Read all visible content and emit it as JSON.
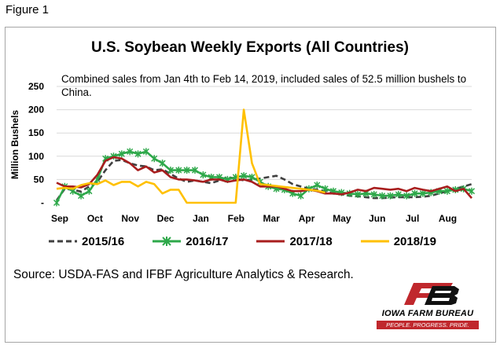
{
  "figure_label": "Figure 1",
  "source_text": "Source: USDA-FAS and IFBF Agriculture Analytics & Research.",
  "logo": {
    "name": "IOWA FARM BUREAU",
    "tagline": "PEOPLE. PROGRESS. PRIDE.",
    "color": "#c0282d"
  },
  "chart_data": {
    "type": "line",
    "title": "U.S. Soybean Weekly Exports (All Countries)",
    "annotation": "Combined sales from Jan 4th to Feb 14, 2019, included sales of 52.5 million bushels to China.",
    "ylabel": "Million Bushels",
    "xlabel": "",
    "ylim": [
      0,
      250
    ],
    "yticks": [
      0,
      50,
      100,
      150,
      200,
      250
    ],
    "ytick_labels": [
      "-",
      "50",
      "100",
      "150",
      "200",
      "250"
    ],
    "x_week_range": [
      1,
      52
    ],
    "months": [
      "Sep",
      "Oct",
      "Nov",
      "Dec",
      "Jan",
      "Feb",
      "Mar",
      "Apr",
      "May",
      "Jun",
      "Jul",
      "Aug"
    ],
    "grid": "horizontal",
    "legend_position": "bottom",
    "series": [
      {
        "name": "2015/16",
        "color": "#404040",
        "style": "dashed",
        "values": [
          5,
          30,
          28,
          24,
          35,
          45,
          70,
          90,
          92,
          85,
          80,
          78,
          70,
          72,
          62,
          52,
          45,
          48,
          45,
          42,
          48,
          55,
          52,
          48,
          50,
          52,
          55,
          58,
          50,
          40,
          35,
          30,
          28,
          25,
          20,
          18,
          15,
          14,
          12,
          10,
          10,
          11,
          12,
          12,
          12,
          13,
          15,
          20,
          25,
          30,
          35,
          40
        ]
      },
      {
        "name": "2016/17",
        "color": "#2ea84a",
        "style": "solid-x-markers",
        "values": [
          0,
          35,
          25,
          15,
          25,
          50,
          95,
          100,
          105,
          110,
          105,
          110,
          95,
          85,
          70,
          70,
          70,
          70,
          60,
          55,
          55,
          50,
          55,
          58,
          55,
          45,
          35,
          30,
          28,
          20,
          15,
          30,
          38,
          30,
          25,
          22,
          20,
          18,
          20,
          18,
          15,
          15,
          18,
          15,
          20,
          20,
          22,
          25,
          25,
          28,
          30,
          25
        ]
      },
      {
        "name": "2017/18",
        "color": "#a81e1e",
        "style": "solid",
        "values": [
          43,
          35,
          35,
          33,
          40,
          60,
          90,
          98,
          95,
          85,
          70,
          78,
          65,
          70,
          55,
          50,
          50,
          48,
          45,
          50,
          50,
          45,
          48,
          50,
          45,
          35,
          35,
          35,
          30,
          25,
          25,
          28,
          25,
          20,
          20,
          18,
          22,
          28,
          25,
          32,
          30,
          28,
          30,
          25,
          32,
          28,
          25,
          30,
          35,
          25,
          30,
          10
        ]
      },
      {
        "name": "2018/19",
        "color": "#ffc000",
        "style": "solid",
        "values": [
          30,
          32,
          30,
          38,
          42,
          40,
          48,
          38,
          45,
          45,
          35,
          45,
          40,
          20,
          28,
          28,
          0,
          0,
          0,
          0,
          0,
          0,
          0,
          200,
          85,
          40,
          38,
          36,
          34,
          32,
          30,
          28,
          26,
          22
        ]
      }
    ]
  }
}
